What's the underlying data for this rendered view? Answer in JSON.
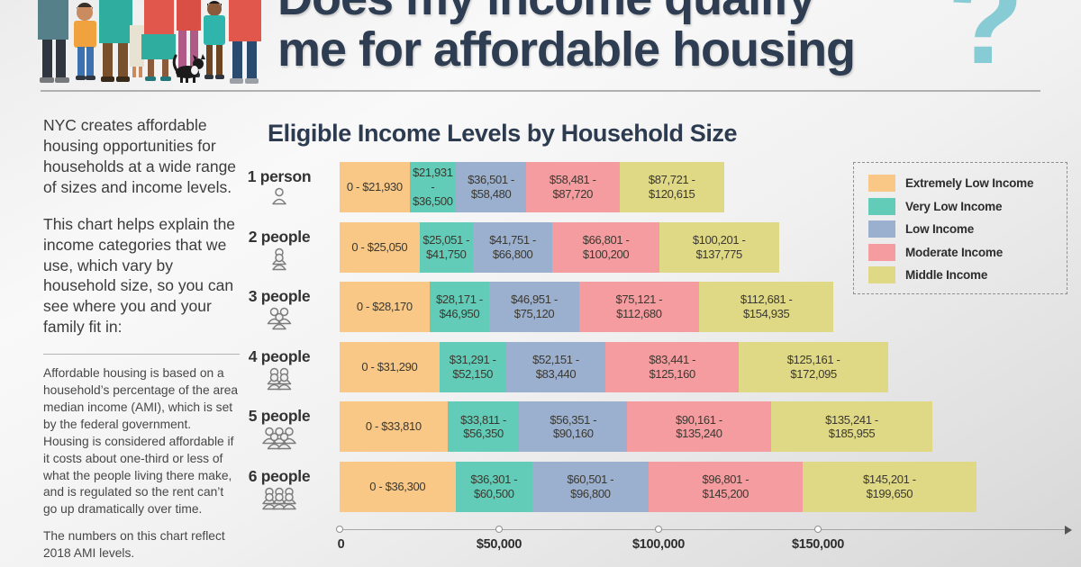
{
  "header": {
    "title_line1": "Does my income qualify",
    "title_line2": "me for affordable housing",
    "question_mark": "?",
    "colors": {
      "title": "#2e3d52",
      "question_mark": "#87cbd4"
    }
  },
  "sidebar": {
    "para1": "NYC creates affordable housing opportunities for households at a wide range of sizes and income levels.",
    "para2": "This chart helps explain the income categories that we use, which vary by household size, so you can see where you and your family fit in:",
    "note1": "Affordable housing is based on a household’s percentage of the area median income (AMI), which is set by the federal government. Housing is considered affordable if it costs about one-third or less of what the people living there make, and is regulated so the rent can’t go up dramatically over time.",
    "note2": "The numbers on this chart reflect 2018 AMI levels."
  },
  "chart_data": {
    "type": "stacked-bar-horizontal",
    "title": "Eligible Income Levels by Household Size",
    "value_unit": "USD annual household income",
    "axis": {
      "min": 0,
      "max": 199650,
      "ticks": [
        {
          "value": 0,
          "label": "0"
        },
        {
          "value": 50000,
          "label": "$50,000"
        },
        {
          "value": 100000,
          "label": "$100,000"
        },
        {
          "value": 150000,
          "label": "$150,000"
        }
      ],
      "arrow": true
    },
    "legend": [
      {
        "name": "Extremely Low Income",
        "color": "#f9c886"
      },
      {
        "name": "Very Low Income",
        "color": "#63ccb8"
      },
      {
        "name": "Low Income",
        "color": "#9bafce"
      },
      {
        "name": "Moderate Income",
        "color": "#f59ca1"
      },
      {
        "name": "Middle Income",
        "color": "#dfd985"
      }
    ],
    "rows": [
      {
        "label": "1 person",
        "people": 1,
        "segments": [
          {
            "range": [
              0,
              21930
            ],
            "text": "0 - $21,930"
          },
          {
            "range": [
              21931,
              36500
            ],
            "text": "$21,931 -\n$36,500"
          },
          {
            "range": [
              36501,
              58480
            ],
            "text": "$36,501 -\n$58,480"
          },
          {
            "range": [
              58481,
              87720
            ],
            "text": "$58,481 -\n$87,720"
          },
          {
            "range": [
              87721,
              120615
            ],
            "text": "$87,721 -\n$120,615"
          }
        ]
      },
      {
        "label": "2 people",
        "people": 2,
        "segments": [
          {
            "range": [
              0,
              25050
            ],
            "text": "0 - $25,050"
          },
          {
            "range": [
              25051,
              41750
            ],
            "text": "$25,051 -\n$41,750"
          },
          {
            "range": [
              41751,
              66800
            ],
            "text": "$41,751 -\n$66,800"
          },
          {
            "range": [
              66801,
              100200
            ],
            "text": "$66,801 -\n$100,200"
          },
          {
            "range": [
              100201,
              137775
            ],
            "text": "$100,201 -\n$137,775"
          }
        ]
      },
      {
        "label": "3 people",
        "people": 3,
        "segments": [
          {
            "range": [
              0,
              28170
            ],
            "text": "0 - $28,170"
          },
          {
            "range": [
              28171,
              46950
            ],
            "text": "$28,171 -\n$46,950"
          },
          {
            "range": [
              46951,
              75120
            ],
            "text": "$46,951 -\n$75,120"
          },
          {
            "range": [
              75121,
              112680
            ],
            "text": "$75,121 -\n$112,680"
          },
          {
            "range": [
              112681,
              154935
            ],
            "text": "$112,681 -\n$154,935"
          }
        ]
      },
      {
        "label": "4 people",
        "people": 4,
        "segments": [
          {
            "range": [
              0,
              31290
            ],
            "text": "0 - $31,290"
          },
          {
            "range": [
              31291,
              52150
            ],
            "text": "$31,291 -\n$52,150"
          },
          {
            "range": [
              52151,
              83440
            ],
            "text": "$52,151 -\n$83,440"
          },
          {
            "range": [
              83441,
              125160
            ],
            "text": "$83,441 -\n$125,160"
          },
          {
            "range": [
              125161,
              172095
            ],
            "text": "$125,161 -\n$172,095"
          }
        ]
      },
      {
        "label": "5 people",
        "people": 5,
        "segments": [
          {
            "range": [
              0,
              33810
            ],
            "text": "0 - $33,810"
          },
          {
            "range": [
              33811,
              56350
            ],
            "text": "$33,811 -\n$56,350"
          },
          {
            "range": [
              56351,
              90160
            ],
            "text": "$56,351 -\n$90,160"
          },
          {
            "range": [
              90161,
              135240
            ],
            "text": "$90,161 -\n$135,240"
          },
          {
            "range": [
              135241,
              185955
            ],
            "text": "$135,241 -\n$185,955"
          }
        ]
      },
      {
        "label": "6 people",
        "people": 6,
        "segments": [
          {
            "range": [
              0,
              36300
            ],
            "text": "0 - $36,300"
          },
          {
            "range": [
              36301,
              60500
            ],
            "text": "$36,301 -\n$60,500"
          },
          {
            "range": [
              60501,
              96800
            ],
            "text": "$60,501 -\n$96,800"
          },
          {
            "range": [
              96801,
              145200
            ],
            "text": "$96,801 -\n$145,200"
          },
          {
            "range": [
              145201,
              199650
            ],
            "text": "$145,201 -\n$199,650"
          }
        ]
      }
    ]
  }
}
